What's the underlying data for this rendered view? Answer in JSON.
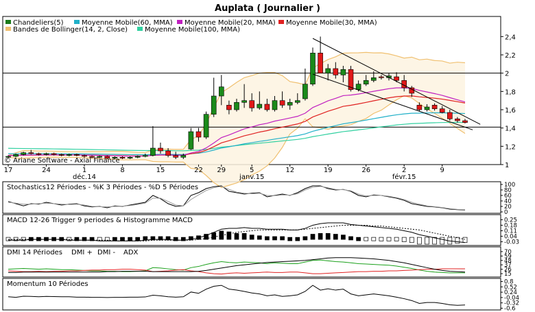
{
  "title": "Auplata  ( Journalier )",
  "chart_data": [
    {
      "type": "candlestick",
      "name": "main",
      "legend": [
        {
          "label": "Chandeliers(5)",
          "color": "#1a7a1a"
        },
        {
          "label": "Moyenne Mobile(60, MMA)",
          "color": "#20b0c8"
        },
        {
          "label": "Moyenne Mobile(20, MMA)",
          "color": "#c020c0"
        },
        {
          "label": "Moyenne Mobile(30, MMA)",
          "color": "#e02020"
        },
        {
          "label": "Bandes de Bollinger(14, 2, Close)",
          "color": "#f0c070"
        },
        {
          "label": "Moyenne Mobile(100, MMA)",
          "color": "#30d0a0"
        }
      ],
      "ylim": [
        1.0,
        2.5
      ],
      "yticks": [
        "2,4",
        "2,2",
        "2",
        "1,8",
        "1,6",
        "1,4",
        "1,2",
        "1"
      ],
      "ytick_values": [
        2.4,
        2.2,
        2.0,
        1.8,
        1.6,
        1.4,
        1.2,
        1.0
      ],
      "xticks": [
        {
          "label": "17",
          "i": 0
        },
        {
          "label": "24",
          "i": 5
        },
        {
          "label": "1",
          "i": 10
        },
        {
          "label": "8",
          "i": 15
        },
        {
          "label": "15",
          "i": 20
        },
        {
          "label": "22",
          "i": 25
        },
        {
          "label": "29",
          "i": 28
        },
        {
          "label": "5",
          "i": 32
        },
        {
          "label": "12",
          "i": 37
        },
        {
          "label": "19",
          "i": 42
        },
        {
          "label": "26",
          "i": 47
        },
        {
          "label": "2",
          "i": 52
        },
        {
          "label": "9",
          "i": 57
        }
      ],
      "month_labels": [
        {
          "label": "déc.14",
          "i": 10
        },
        {
          "label": "janv.15",
          "i": 32
        },
        {
          "label": "févr.15",
          "i": 52
        }
      ],
      "watermark": "© Ariane Software - Axial Finance",
      "horizontal_lines": [
        2.0,
        1.41
      ],
      "candles": [
        [
          1.09,
          1.1,
          1.07,
          1.09
        ],
        [
          1.09,
          1.12,
          1.08,
          1.11
        ],
        [
          1.11,
          1.14,
          1.1,
          1.13
        ],
        [
          1.13,
          1.16,
          1.11,
          1.12
        ],
        [
          1.12,
          1.13,
          1.1,
          1.11
        ],
        [
          1.11,
          1.13,
          1.1,
          1.12
        ],
        [
          1.12,
          1.13,
          1.1,
          1.11
        ],
        [
          1.11,
          1.12,
          1.09,
          1.1
        ],
        [
          1.1,
          1.12,
          1.09,
          1.11
        ],
        [
          1.11,
          1.12,
          1.09,
          1.1
        ],
        [
          1.1,
          1.11,
          1.08,
          1.09
        ],
        [
          1.09,
          1.1,
          1.07,
          1.08
        ],
        [
          1.08,
          1.1,
          1.07,
          1.09
        ],
        [
          1.09,
          1.1,
          1.06,
          1.07
        ],
        [
          1.07,
          1.09,
          1.06,
          1.08
        ],
        [
          1.08,
          1.09,
          1.06,
          1.07
        ],
        [
          1.07,
          1.09,
          1.06,
          1.08
        ],
        [
          1.08,
          1.1,
          1.07,
          1.09
        ],
        [
          1.09,
          1.12,
          1.08,
          1.1
        ],
        [
          1.1,
          1.42,
          1.09,
          1.18
        ],
        [
          1.18,
          1.24,
          1.12,
          1.15
        ],
        [
          1.15,
          1.18,
          1.08,
          1.1
        ],
        [
          1.1,
          1.14,
          1.06,
          1.08
        ],
        [
          1.08,
          1.12,
          1.06,
          1.1
        ],
        [
          1.17,
          1.4,
          1.16,
          1.36
        ],
        [
          1.36,
          1.4,
          1.25,
          1.3
        ],
        [
          1.3,
          1.58,
          1.28,
          1.55
        ],
        [
          1.55,
          1.95,
          1.52,
          1.75
        ],
        [
          1.75,
          1.98,
          1.65,
          1.85
        ],
        [
          1.65,
          1.7,
          1.55,
          1.6
        ],
        [
          1.6,
          1.72,
          1.58,
          1.68
        ],
        [
          1.68,
          1.88,
          1.62,
          1.7
        ],
        [
          1.7,
          1.78,
          1.58,
          1.62
        ],
        [
          1.62,
          1.8,
          1.6,
          1.66
        ],
        [
          1.66,
          1.72,
          1.58,
          1.6
        ],
        [
          1.6,
          1.75,
          1.58,
          1.7
        ],
        [
          1.7,
          1.8,
          1.62,
          1.65
        ],
        [
          1.65,
          1.72,
          1.6,
          1.68
        ],
        [
          1.68,
          1.78,
          1.66,
          1.7
        ],
        [
          1.72,
          2.05,
          1.7,
          1.88
        ],
        [
          1.88,
          2.28,
          1.86,
          2.22
        ],
        [
          2.22,
          2.4,
          2.0,
          2.0
        ],
        [
          2.0,
          2.1,
          1.92,
          2.05
        ],
        [
          2.05,
          2.12,
          1.94,
          1.98
        ],
        [
          1.98,
          2.08,
          1.9,
          2.04
        ],
        [
          2.04,
          2.08,
          1.8,
          1.82
        ],
        [
          1.82,
          1.92,
          1.8,
          1.88
        ],
        [
          1.88,
          1.98,
          1.86,
          1.92
        ],
        [
          1.92,
          2.02,
          1.9,
          1.95
        ],
        [
          1.96,
          1.98,
          1.93,
          1.95
        ],
        [
          1.95,
          2.0,
          1.92,
          1.97
        ],
        [
          1.96,
          2.01,
          1.9,
          1.92
        ],
        [
          1.92,
          1.98,
          1.8,
          1.84
        ],
        [
          1.84,
          1.86,
          1.74,
          1.78
        ],
        [
          1.65,
          1.68,
          1.58,
          1.6
        ],
        [
          1.6,
          1.66,
          1.58,
          1.63
        ],
        [
          1.65,
          1.67,
          1.59,
          1.61
        ],
        [
          1.61,
          1.64,
          1.56,
          1.57
        ],
        [
          1.57,
          1.6,
          1.48,
          1.5
        ],
        [
          1.5,
          1.52,
          1.46,
          1.48
        ],
        [
          1.48,
          1.5,
          1.45,
          1.46
        ]
      ]
    },
    {
      "type": "line",
      "name": "stochastics",
      "label": "Stochastics12 Périodes  -  %K 3 Périodes  -  %D 5 Périodes",
      "ylim": [
        0,
        100
      ],
      "yticks": [
        "100",
        "80",
        "60",
        "40",
        "20",
        "0"
      ],
      "ytick_values": [
        100,
        80,
        60,
        40,
        20,
        0
      ],
      "series": [
        {
          "color": "#000000",
          "values": [
            38,
            30,
            22,
            30,
            28,
            35,
            30,
            25,
            28,
            30,
            22,
            18,
            20,
            15,
            22,
            20,
            25,
            30,
            35,
            60,
            48,
            30,
            20,
            22,
            60,
            70,
            85,
            92,
            95,
            75,
            70,
            65,
            68,
            70,
            55,
            60,
            65,
            60,
            70,
            85,
            95,
            95,
            85,
            80,
            82,
            75,
            60,
            55,
            62,
            60,
            55,
            50,
            42,
            30,
            25,
            20,
            18,
            15,
            10,
            8,
            7
          ]
        },
        {
          "color": "#9a9a9a",
          "values": [
            35,
            32,
            28,
            28,
            30,
            32,
            30,
            28,
            27,
            28,
            25,
            20,
            19,
            18,
            20,
            21,
            23,
            27,
            32,
            50,
            50,
            38,
            25,
            22,
            45,
            62,
            78,
            88,
            93,
            82,
            72,
            68,
            66,
            68,
            60,
            59,
            62,
            61,
            66,
            80,
            90,
            93,
            88,
            82,
            81,
            77,
            65,
            58,
            60,
            60,
            57,
            52,
            45,
            35,
            28,
            22,
            19,
            16,
            12,
            9,
            8
          ]
        }
      ]
    },
    {
      "type": "line+histogram",
      "name": "macd",
      "label": "MACD 12-26   Trigger 9 periodes & Histogramme MACD",
      "ylim": [
        -0.06,
        0.28
      ],
      "yticks": [
        "0.25",
        "0.18",
        "0.11",
        "0.04",
        "-0.03"
      ],
      "ytick_values": [
        0.25,
        0.18,
        0.11,
        0.04,
        -0.03
      ],
      "series": [
        {
          "color": "#000000",
          "dash": false,
          "values": [
            -0.01,
            -0.01,
            -0.01,
            0.0,
            0.0,
            0.0,
            0.0,
            0.0,
            -0.01,
            -0.01,
            -0.01,
            -0.01,
            -0.02,
            -0.02,
            -0.02,
            -0.02,
            -0.02,
            -0.02,
            -0.01,
            0.0,
            0.0,
            0.0,
            -0.01,
            -0.01,
            0.0,
            0.02,
            0.05,
            0.09,
            0.13,
            0.14,
            0.14,
            0.15,
            0.14,
            0.14,
            0.13,
            0.13,
            0.13,
            0.12,
            0.12,
            0.14,
            0.18,
            0.2,
            0.21,
            0.21,
            0.21,
            0.19,
            0.18,
            0.17,
            0.16,
            0.15,
            0.14,
            0.13,
            0.11,
            0.09,
            0.06,
            0.04,
            0.02,
            0.0,
            -0.02,
            -0.03,
            -0.04
          ]
        },
        {
          "color": "#000000",
          "dash": true,
          "values": [
            0.0,
            0.0,
            0.0,
            0.0,
            0.0,
            0.0,
            0.0,
            0.0,
            0.0,
            -0.01,
            -0.01,
            -0.01,
            -0.01,
            -0.01,
            -0.02,
            -0.02,
            -0.02,
            -0.02,
            -0.02,
            -0.01,
            -0.01,
            -0.01,
            -0.01,
            -0.01,
            -0.01,
            0.0,
            0.01,
            0.03,
            0.05,
            0.07,
            0.09,
            0.1,
            0.11,
            0.12,
            0.12,
            0.12,
            0.12,
            0.12,
            0.12,
            0.13,
            0.14,
            0.15,
            0.16,
            0.17,
            0.18,
            0.18,
            0.18,
            0.18,
            0.17,
            0.17,
            0.16,
            0.15,
            0.14,
            0.13,
            0.12,
            0.1,
            0.08,
            0.06,
            0.04,
            0.02,
            0.0
          ]
        }
      ]
    },
    {
      "type": "line",
      "name": "dmi",
      "label": "DMI 14 Périodes",
      "series_labels": [
        {
          "label": "DMI +",
          "color": "#1aa01a"
        },
        {
          "label": "DMI -",
          "color": "#e02020"
        },
        {
          "label": "ADX",
          "color": "#000000"
        }
      ],
      "ylim": [
        10,
        75
      ],
      "yticks": [
        "70",
        "59",
        "48",
        "37",
        "26",
        "15"
      ],
      "ytick_values": [
        70,
        59,
        48,
        37,
        26,
        15
      ],
      "series": [
        {
          "color": "#1aa01a",
          "values": [
            26,
            27,
            28,
            27,
            26,
            27,
            26,
            25,
            25,
            24,
            23,
            22,
            22,
            21,
            21,
            20,
            20,
            21,
            22,
            30,
            29,
            27,
            25,
            24,
            30,
            33,
            38,
            42,
            45,
            43,
            42,
            44,
            43,
            42,
            40,
            42,
            41,
            40,
            40,
            44,
            48,
            49,
            47,
            45,
            44,
            42,
            40,
            39,
            38,
            37,
            36,
            34,
            31,
            28,
            24,
            21,
            19,
            18,
            17,
            17,
            17
          ]
        },
        {
          "color": "#e02020",
          "values": [
            22,
            21,
            20,
            20,
            21,
            20,
            21,
            21,
            22,
            22,
            23,
            24,
            24,
            25,
            25,
            26,
            26,
            25,
            24,
            20,
            21,
            22,
            24,
            25,
            22,
            20,
            17,
            15,
            14,
            16,
            17,
            16,
            17,
            18,
            19,
            18,
            18,
            19,
            19,
            17,
            15,
            15,
            16,
            17,
            18,
            19,
            20,
            20,
            21,
            21,
            22,
            22,
            23,
            24,
            25,
            26,
            26,
            27,
            27,
            27,
            27
          ]
        },
        {
          "color": "#000000",
          "values": [
            18,
            18,
            19,
            19,
            19,
            19,
            19,
            19,
            19,
            19,
            19,
            19,
            19,
            20,
            20,
            21,
            21,
            21,
            21,
            20,
            20,
            20,
            20,
            20,
            20,
            21,
            23,
            26,
            29,
            32,
            35,
            37,
            39,
            41,
            43,
            44,
            45,
            46,
            47,
            48,
            50,
            52,
            54,
            55,
            55,
            55,
            54,
            53,
            52,
            50,
            48,
            45,
            42,
            38,
            34,
            30,
            26,
            23,
            21,
            20,
            19
          ]
        }
      ]
    },
    {
      "type": "line",
      "name": "momentum",
      "label": "Momentum 10 Périodes",
      "ylim": [
        -0.62,
        0.82
      ],
      "yticks": [
        "0.8",
        "0.52",
        "0.24",
        "-0.04",
        "-0.32",
        "-0.6"
      ],
      "ytick_values": [
        0.8,
        0.52,
        0.24,
        -0.04,
        -0.32,
        -0.6
      ],
      "series": [
        {
          "color": "#000000",
          "values": [
            0.0,
            -0.03,
            0.03,
            0.02,
            0.0,
            0.02,
            0.01,
            0.0,
            0.0,
            -0.02,
            -0.02,
            -0.03,
            -0.03,
            -0.04,
            -0.03,
            -0.03,
            -0.02,
            -0.02,
            -0.01,
            0.08,
            0.05,
            0.0,
            -0.02,
            0.0,
            0.25,
            0.18,
            0.4,
            0.55,
            0.6,
            0.4,
            0.35,
            0.28,
            0.2,
            0.15,
            0.05,
            0.1,
            0.02,
            0.05,
            0.1,
            0.28,
            0.6,
            0.35,
            0.42,
            0.35,
            0.4,
            0.15,
            0.05,
            0.1,
            0.15,
            0.1,
            0.05,
            -0.02,
            -0.1,
            -0.2,
            -0.35,
            -0.3,
            -0.3,
            -0.35,
            -0.42,
            -0.45,
            -0.43
          ]
        }
      ]
    }
  ]
}
